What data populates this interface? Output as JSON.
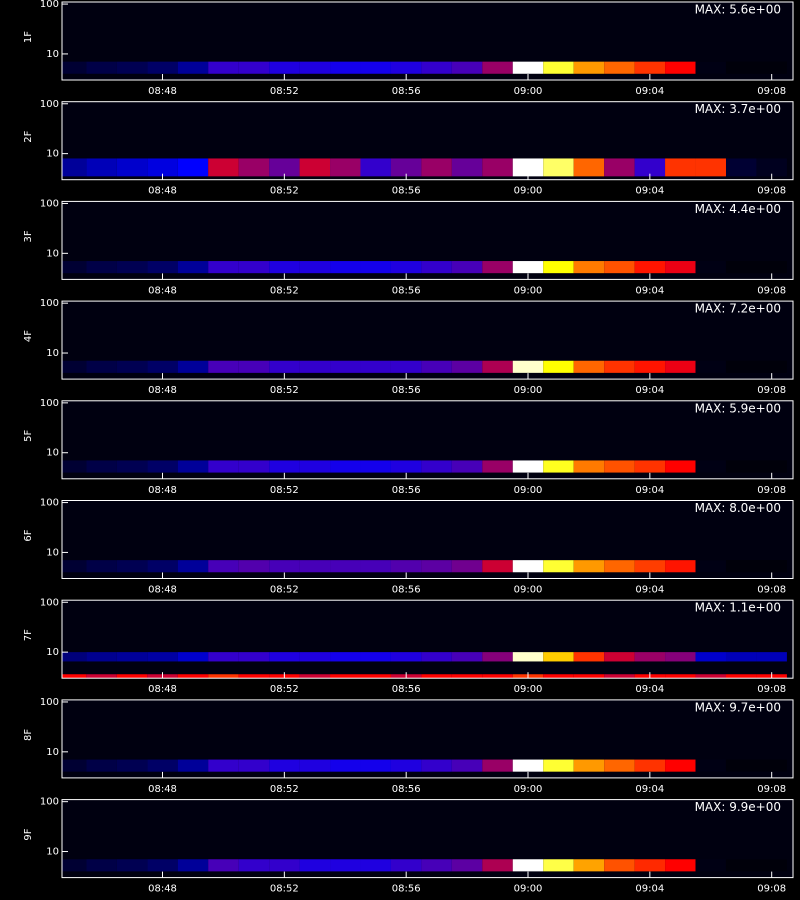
{
  "chart_data": [
    {
      "type": "heatmap",
      "ylabel": "1F",
      "max_label": "MAX: 5.6e+00",
      "log": true,
      "ylim": [
        3,
        110
      ],
      "yticks": [
        10,
        100
      ],
      "xlim": [
        524.7,
        548.7
      ],
      "xticks": [
        {
          "value": 528,
          "label": "08:48"
        },
        {
          "value": 532,
          "label": "08:52"
        },
        {
          "value": 536,
          "label": "08:56"
        },
        {
          "value": 540,
          "label": "09:00"
        },
        {
          "value": 544,
          "label": "09:04"
        },
        {
          "value": 548,
          "label": "09:08"
        }
      ],
      "colormap": [
        "#000000",
        "#0000ff",
        "#ff0000",
        "#ffff00",
        "#ffffff"
      ],
      "x": [
        525,
        526,
        527,
        528,
        529,
        530,
        531,
        532,
        533,
        534,
        535,
        536,
        537,
        538,
        539,
        540,
        541,
        542,
        543,
        544,
        545,
        546,
        547,
        548
      ],
      "bands": [
        {
          "energy_range": [
            4,
            7
          ],
          "values": [
            0.05,
            0.07,
            0.08,
            0.1,
            0.15,
            0.3,
            0.3,
            0.28,
            0.28,
            0.27,
            0.27,
            0.28,
            0.3,
            0.32,
            0.4,
            1.0,
            0.8,
            0.65,
            0.6,
            0.55,
            0.5,
            0.02,
            0.01,
            0.01
          ]
        }
      ]
    },
    {
      "type": "heatmap",
      "ylabel": "2F",
      "max_label": "MAX: 3.7e+00",
      "log": true,
      "ylim": [
        3,
        110
      ],
      "yticks": [
        10,
        100
      ],
      "xlim": [
        524.7,
        548.7
      ],
      "xticks": [
        {
          "value": 528,
          "label": "08:48"
        },
        {
          "value": 532,
          "label": "08:52"
        },
        {
          "value": 536,
          "label": "08:56"
        },
        {
          "value": 540,
          "label": "09:00"
        },
        {
          "value": 544,
          "label": "09:04"
        },
        {
          "value": 548,
          "label": "09:08"
        }
      ],
      "colormap": [
        "#000000",
        "#0000ff",
        "#ff0000",
        "#ffff00",
        "#ffffff"
      ],
      "x": [
        525,
        526,
        527,
        528,
        529,
        530,
        531,
        532,
        533,
        534,
        535,
        536,
        537,
        538,
        539,
        540,
        541,
        542,
        543,
        544,
        545,
        546,
        547,
        548
      ],
      "bands": [
        {
          "energy_range": [
            3.5,
            8
          ],
          "values": [
            0.15,
            0.18,
            0.2,
            0.22,
            0.25,
            0.45,
            0.4,
            0.35,
            0.45,
            0.4,
            0.3,
            0.35,
            0.4,
            0.35,
            0.4,
            1.0,
            0.85,
            0.6,
            0.4,
            0.3,
            0.55,
            0.55,
            0.05,
            0.03
          ]
        }
      ]
    },
    {
      "type": "heatmap",
      "ylabel": "3F",
      "max_label": "MAX: 4.4e+00",
      "log": true,
      "ylim": [
        3,
        110
      ],
      "yticks": [
        10,
        100
      ],
      "xlim": [
        524.7,
        548.7
      ],
      "xticks": [
        {
          "value": 528,
          "label": "08:48"
        },
        {
          "value": 532,
          "label": "08:52"
        },
        {
          "value": 536,
          "label": "08:56"
        },
        {
          "value": 540,
          "label": "09:00"
        },
        {
          "value": 544,
          "label": "09:04"
        },
        {
          "value": 548,
          "label": "09:08"
        }
      ],
      "colormap": [
        "#000000",
        "#0000ff",
        "#ff0000",
        "#ffff00",
        "#ffffff"
      ],
      "x": [
        525,
        526,
        527,
        528,
        529,
        530,
        531,
        532,
        533,
        534,
        535,
        536,
        537,
        538,
        539,
        540,
        541,
        542,
        543,
        544,
        545,
        546,
        547,
        548
      ],
      "bands": [
        {
          "energy_range": [
            4,
            7
          ],
          "values": [
            0.05,
            0.07,
            0.08,
            0.1,
            0.15,
            0.3,
            0.3,
            0.28,
            0.28,
            0.27,
            0.27,
            0.28,
            0.3,
            0.32,
            0.4,
            1.0,
            0.75,
            0.62,
            0.58,
            0.52,
            0.48,
            0.02,
            0.01,
            0.01
          ]
        }
      ]
    },
    {
      "type": "heatmap",
      "ylabel": "4F",
      "max_label": "MAX: 7.2e+00",
      "log": true,
      "ylim": [
        3,
        110
      ],
      "yticks": [
        10,
        100
      ],
      "xlim": [
        524.7,
        548.7
      ],
      "xticks": [
        {
          "value": 528,
          "label": "08:48"
        },
        {
          "value": 532,
          "label": "08:52"
        },
        {
          "value": 536,
          "label": "08:56"
        },
        {
          "value": 540,
          "label": "09:00"
        },
        {
          "value": 544,
          "label": "09:04"
        },
        {
          "value": 548,
          "label": "09:08"
        }
      ],
      "colormap": [
        "#000000",
        "#0000ff",
        "#ff0000",
        "#ffff00",
        "#ffffff"
      ],
      "x": [
        525,
        526,
        527,
        528,
        529,
        530,
        531,
        532,
        533,
        534,
        535,
        536,
        537,
        538,
        539,
        540,
        541,
        542,
        543,
        544,
        545,
        546,
        547,
        548
      ],
      "bands": [
        {
          "energy_range": [
            4,
            7
          ],
          "values": [
            0.05,
            0.07,
            0.08,
            0.1,
            0.15,
            0.32,
            0.32,
            0.3,
            0.3,
            0.3,
            0.3,
            0.3,
            0.32,
            0.34,
            0.42,
            0.95,
            0.75,
            0.6,
            0.55,
            0.52,
            0.48,
            0.02,
            0.01,
            0.01
          ]
        }
      ]
    },
    {
      "type": "heatmap",
      "ylabel": "5F",
      "max_label": "MAX: 5.9e+00",
      "log": true,
      "ylim": [
        3,
        110
      ],
      "yticks": [
        10,
        100
      ],
      "xlim": [
        524.7,
        548.7
      ],
      "xticks": [
        {
          "value": 528,
          "label": "08:48"
        },
        {
          "value": 532,
          "label": "08:52"
        },
        {
          "value": 536,
          "label": "08:56"
        },
        {
          "value": 540,
          "label": "09:00"
        },
        {
          "value": 544,
          "label": "09:04"
        },
        {
          "value": 548,
          "label": "09:08"
        }
      ],
      "colormap": [
        "#000000",
        "#0000ff",
        "#ff0000",
        "#ffff00",
        "#ffffff"
      ],
      "x": [
        525,
        526,
        527,
        528,
        529,
        530,
        531,
        532,
        533,
        534,
        535,
        536,
        537,
        538,
        539,
        540,
        541,
        542,
        543,
        544,
        545,
        546,
        547,
        548
      ],
      "bands": [
        {
          "energy_range": [
            4,
            7
          ],
          "values": [
            0.05,
            0.07,
            0.08,
            0.1,
            0.15,
            0.3,
            0.3,
            0.28,
            0.28,
            0.27,
            0.27,
            0.28,
            0.3,
            0.32,
            0.4,
            1.0,
            0.78,
            0.62,
            0.58,
            0.55,
            0.5,
            0.02,
            0.01,
            0.01
          ]
        }
      ]
    },
    {
      "type": "heatmap",
      "ylabel": "6F",
      "max_label": "MAX: 8.0e+00",
      "log": true,
      "ylim": [
        3,
        110
      ],
      "yticks": [
        10,
        100
      ],
      "xlim": [
        524.7,
        548.7
      ],
      "xticks": [
        {
          "value": 528,
          "label": "08:48"
        },
        {
          "value": 532,
          "label": "08:52"
        },
        {
          "value": 536,
          "label": "08:56"
        },
        {
          "value": 540,
          "label": "09:00"
        },
        {
          "value": 544,
          "label": "09:04"
        },
        {
          "value": 548,
          "label": "09:08"
        }
      ],
      "colormap": [
        "#000000",
        "#0000ff",
        "#ff0000",
        "#ffff00",
        "#ffffff"
      ],
      "x": [
        525,
        526,
        527,
        528,
        529,
        530,
        531,
        532,
        533,
        534,
        535,
        536,
        537,
        538,
        539,
        540,
        541,
        542,
        543,
        544,
        545,
        546,
        547,
        548
      ],
      "bands": [
        {
          "energy_range": [
            4,
            7
          ],
          "values": [
            0.05,
            0.07,
            0.08,
            0.1,
            0.15,
            0.32,
            0.33,
            0.32,
            0.32,
            0.32,
            0.32,
            0.33,
            0.34,
            0.36,
            0.45,
            1.0,
            0.8,
            0.65,
            0.6,
            0.56,
            0.52,
            0.02,
            0.01,
            0.01
          ]
        }
      ]
    },
    {
      "type": "heatmap",
      "ylabel": "7F",
      "max_label": "MAX: 1.1e+00",
      "log": true,
      "ylim": [
        3,
        110
      ],
      "yticks": [
        10,
        100
      ],
      "xlim": [
        524.7,
        548.7
      ],
      "xticks": [
        {
          "value": 528,
          "label": "08:48"
        },
        {
          "value": 532,
          "label": "08:52"
        },
        {
          "value": 536,
          "label": "08:56"
        },
        {
          "value": 540,
          "label": "09:00"
        },
        {
          "value": 544,
          "label": "09:04"
        },
        {
          "value": 548,
          "label": "09:08"
        }
      ],
      "colormap": [
        "#000000",
        "#0000ff",
        "#ff0000",
        "#ffff00",
        "#ffffff"
      ],
      "x": [
        525,
        526,
        527,
        528,
        529,
        530,
        531,
        532,
        533,
        534,
        535,
        536,
        537,
        538,
        539,
        540,
        541,
        542,
        543,
        544,
        545,
        546,
        547,
        548
      ],
      "bands": [
        {
          "energy_range": [
            6.5,
            10
          ],
          "values": [
            0.12,
            0.14,
            0.15,
            0.16,
            0.2,
            0.3,
            0.3,
            0.28,
            0.28,
            0.27,
            0.27,
            0.28,
            0.3,
            0.32,
            0.38,
            0.95,
            0.7,
            0.55,
            0.45,
            0.4,
            0.38,
            0.2,
            0.18,
            0.18
          ]
        },
        {
          "energy_range": [
            3,
            3.6
          ],
          "values": [
            0.5,
            0.45,
            0.5,
            0.45,
            0.5,
            0.55,
            0.5,
            0.5,
            0.45,
            0.5,
            0.5,
            0.45,
            0.5,
            0.5,
            0.5,
            0.55,
            0.5,
            0.5,
            0.45,
            0.5,
            0.5,
            0.45,
            0.5,
            0.5
          ]
        }
      ]
    },
    {
      "type": "heatmap",
      "ylabel": "8F",
      "max_label": "MAX: 9.7e+00",
      "log": true,
      "ylim": [
        3,
        110
      ],
      "yticks": [
        10,
        100
      ],
      "xlim": [
        524.7,
        548.7
      ],
      "xticks": [
        {
          "value": 528,
          "label": "08:48"
        },
        {
          "value": 532,
          "label": "08:52"
        },
        {
          "value": 536,
          "label": "08:56"
        },
        {
          "value": 540,
          "label": "09:00"
        },
        {
          "value": 544,
          "label": "09:04"
        },
        {
          "value": 548,
          "label": "09:08"
        }
      ],
      "colormap": [
        "#000000",
        "#0000ff",
        "#ff0000",
        "#ffff00",
        "#ffffff"
      ],
      "x": [
        525,
        526,
        527,
        528,
        529,
        530,
        531,
        532,
        533,
        534,
        535,
        536,
        537,
        538,
        539,
        540,
        541,
        542,
        543,
        544,
        545,
        546,
        547,
        548
      ],
      "bands": [
        {
          "energy_range": [
            4,
            7
          ],
          "values": [
            0.05,
            0.07,
            0.08,
            0.1,
            0.15,
            0.3,
            0.3,
            0.28,
            0.28,
            0.27,
            0.27,
            0.28,
            0.3,
            0.32,
            0.4,
            1.0,
            0.8,
            0.65,
            0.6,
            0.55,
            0.5,
            0.02,
            0.01,
            0.01
          ]
        }
      ]
    },
    {
      "type": "heatmap",
      "ylabel": "9F",
      "max_label": "MAX: 9.9e+00",
      "log": true,
      "ylim": [
        3,
        110
      ],
      "yticks": [
        10,
        100
      ],
      "xlim": [
        524.7,
        548.7
      ],
      "xticks": [
        {
          "value": 528,
          "label": "08:48"
        },
        {
          "value": 532,
          "label": "08:52"
        },
        {
          "value": 536,
          "label": "08:56"
        },
        {
          "value": 540,
          "label": "09:00"
        },
        {
          "value": 544,
          "label": "09:04"
        },
        {
          "value": 548,
          "label": "09:08"
        }
      ],
      "colormap": [
        "#000000",
        "#0000ff",
        "#ff0000",
        "#ffff00",
        "#ffffff"
      ],
      "x": [
        525,
        526,
        527,
        528,
        529,
        530,
        531,
        532,
        533,
        534,
        535,
        536,
        537,
        538,
        539,
        540,
        541,
        542,
        543,
        544,
        545,
        546,
        547,
        548
      ],
      "bands": [
        {
          "energy_range": [
            4,
            7
          ],
          "values": [
            0.05,
            0.07,
            0.08,
            0.1,
            0.15,
            0.32,
            0.3,
            0.3,
            0.28,
            0.28,
            0.28,
            0.3,
            0.32,
            0.34,
            0.42,
            1.0,
            0.82,
            0.66,
            0.58,
            0.54,
            0.5,
            0.02,
            0.01,
            0.01
          ]
        }
      ]
    }
  ]
}
